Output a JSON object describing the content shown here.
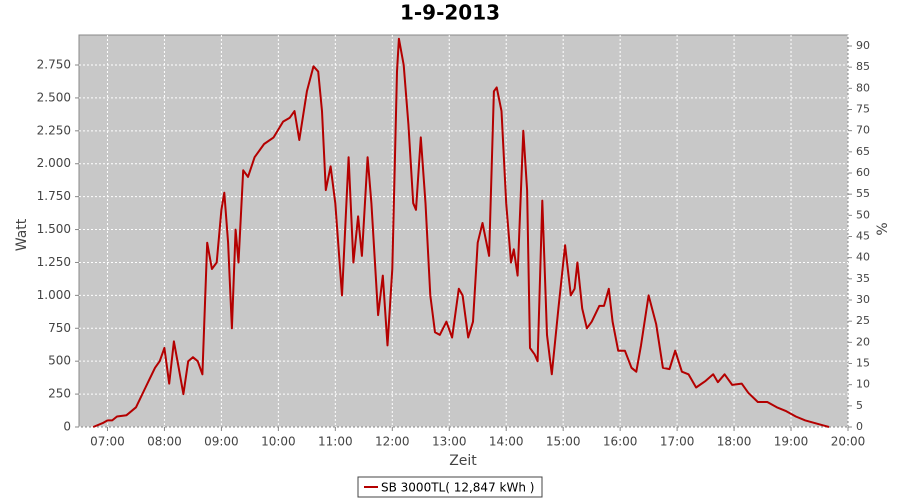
{
  "chart_data": {
    "type": "line",
    "title": "1-9-2013",
    "ylabel": "Watt",
    "y2label": "%",
    "xlabel": "Zeit",
    "grid": true,
    "legend": "bottom",
    "xlim": [
      "06:30",
      "20:00"
    ],
    "xticks": [
      "07:00",
      "08:00",
      "09:00",
      "10:00",
      "11:00",
      "12:00",
      "13:00",
      "14:00",
      "15:00",
      "16:00",
      "17:00",
      "18:00",
      "19:00",
      "20:00"
    ],
    "ylim": [
      0,
      2978
    ],
    "yticks": [
      0,
      250,
      500,
      750,
      {
        "value": 1000,
        "label": "1.000"
      },
      {
        "value": 1250,
        "label": "1.250"
      },
      {
        "value": 1500,
        "label": "1.500"
      },
      {
        "value": 1750,
        "label": "1.750"
      },
      {
        "value": 2000,
        "label": "2.000"
      },
      {
        "value": 2250,
        "label": "2.250"
      },
      {
        "value": 2500,
        "label": "2.500"
      },
      {
        "value": 2750,
        "label": "2.750"
      }
    ],
    "y2lim": [
      0,
      92.6
    ],
    "y2ticks": [
      0,
      5,
      10,
      15,
      20,
      25,
      30,
      35,
      40,
      45,
      50,
      55,
      60,
      65,
      70,
      75,
      80,
      85,
      90
    ],
    "x": [
      "06:45",
      "06:55",
      "07:00",
      "07:05",
      "07:10",
      "07:20",
      "07:30",
      "07:40",
      "07:50",
      "07:55",
      "08:00",
      "08:05",
      "08:10",
      "08:15",
      "08:20",
      "08:25",
      "08:30",
      "08:35",
      "08:40",
      "08:45",
      "08:50",
      "08:55",
      "09:00",
      "09:03",
      "09:07",
      "09:11",
      "09:15",
      "09:18",
      "09:23",
      "09:28",
      "09:35",
      "09:45",
      "09:55",
      "10:05",
      "10:12",
      "10:17",
      "10:22",
      "10:30",
      "10:37",
      "10:42",
      "10:46",
      "10:50",
      "10:55",
      "11:00",
      "11:07",
      "11:14",
      "11:19",
      "11:24",
      "11:28",
      "11:34",
      "11:38",
      "11:45",
      "11:50",
      "11:55",
      "12:00",
      "12:05",
      "12:07",
      "12:12",
      "12:17",
      "12:22",
      "12:25",
      "12:30",
      "12:35",
      "12:40",
      "12:45",
      "12:50",
      "12:57",
      "13:03",
      "13:10",
      "13:14",
      "13:20",
      "13:25",
      "13:30",
      "13:35",
      "13:42",
      "13:47",
      "13:50",
      "13:55",
      "14:00",
      "14:05",
      "14:08",
      "14:12",
      "14:18",
      "14:22",
      "14:25",
      "14:30",
      "14:33",
      "14:38",
      "14:43",
      "14:48",
      "14:55",
      "15:02",
      "15:08",
      "15:12",
      "15:15",
      "15:20",
      "15:25",
      "15:30",
      "15:38",
      "15:43",
      "15:48",
      "15:52",
      "15:58",
      "16:05",
      "16:12",
      "16:17",
      "16:22",
      "16:30",
      "16:38",
      "16:45",
      "16:52",
      "16:58",
      "17:05",
      "17:12",
      "17:20",
      "17:30",
      "17:38",
      "17:43",
      "17:50",
      "17:58",
      "18:08",
      "18:15",
      "18:25",
      "18:35",
      "18:45",
      "18:55",
      "19:05",
      "19:15",
      "19:25",
      "19:35",
      "19:40"
    ],
    "series": [
      {
        "name": "SB 3000TL( 12,847 kWh )",
        "color": "#b40000",
        "values": [
          0,
          30,
          50,
          50,
          80,
          90,
          150,
          300,
          450,
          500,
          600,
          330,
          650,
          450,
          250,
          500,
          530,
          500,
          400,
          1400,
          1200,
          1250,
          1650,
          1780,
          1400,
          750,
          1500,
          1250,
          1950,
          1900,
          2050,
          2150,
          2200,
          2320,
          2350,
          2400,
          2180,
          2550,
          2740,
          2700,
          2400,
          1800,
          1980,
          1700,
          1000,
          2050,
          1250,
          1600,
          1300,
          2050,
          1700,
          850,
          1150,
          620,
          1200,
          2700,
          2950,
          2750,
          2300,
          1700,
          1650,
          2200,
          1700,
          1000,
          720,
          700,
          800,
          680,
          1050,
          1000,
          680,
          800,
          1400,
          1550,
          1300,
          2550,
          2580,
          2400,
          1700,
          1250,
          1350,
          1150,
          2250,
          1800,
          600,
          550,
          500,
          1720,
          700,
          400,
          900,
          1380,
          1000,
          1050,
          1250,
          900,
          750,
          800,
          920,
          920,
          1050,
          800,
          580,
          580,
          450,
          420,
          620,
          1000,
          780,
          450,
          440,
          580,
          420,
          400,
          300,
          350,
          400,
          340,
          400,
          320,
          330,
          260,
          190,
          190,
          150,
          120,
          80,
          50,
          30,
          10,
          0
        ]
      }
    ]
  }
}
